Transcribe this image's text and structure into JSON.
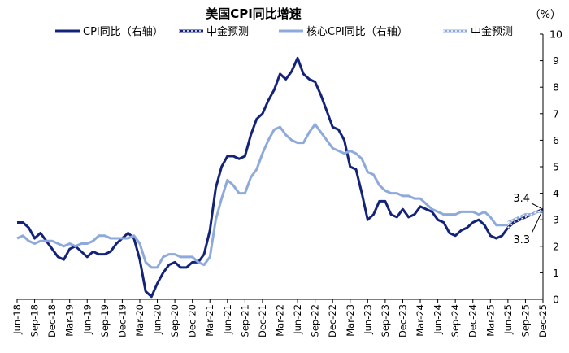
{
  "chart_data": {
    "type": "line",
    "title": "美国CPI同比增速",
    "unit_label": "（%）",
    "ylim": [
      0,
      10
    ],
    "y_ticks": [
      0,
      1,
      2,
      3,
      4,
      5,
      6,
      7,
      8,
      9,
      10
    ],
    "y_axis_side": "right",
    "grid": false,
    "legend_position": "top",
    "x_start": "2018-06",
    "x_tick_labels": [
      "Jun-18",
      "Sep-18",
      "Dec-18",
      "Mar-19",
      "Jun-19",
      "Sep-19",
      "Dec-19",
      "Mar-20",
      "Jun-20",
      "Sep-20",
      "Dec-20",
      "Mar-21",
      "Jun-21",
      "Sep-21",
      "Dec-21",
      "Mar-22",
      "Jun-22",
      "Sep-22",
      "Dec-22",
      "Mar-23",
      "Jun-23",
      "Sep-23",
      "Dec-23",
      "Mar-24",
      "Jun-24",
      "Sep-24",
      "Dec-24",
      "Mar-25",
      "Jun-25",
      "Sep-25",
      "Dec-25"
    ],
    "series": [
      {
        "name": "CPI同比（右轴）",
        "color": "#14237a",
        "style": "solid",
        "start": "2018-06",
        "values": [
          2.9,
          2.9,
          2.7,
          2.3,
          2.5,
          2.2,
          1.9,
          1.6,
          1.5,
          1.9,
          2.0,
          1.8,
          1.6,
          1.8,
          1.7,
          1.7,
          1.8,
          2.1,
          2.3,
          2.5,
          2.3,
          1.5,
          0.3,
          0.1,
          0.6,
          1.0,
          1.3,
          1.4,
          1.2,
          1.2,
          1.4,
          1.4,
          1.7,
          2.6,
          4.2,
          5.0,
          5.4,
          5.4,
          5.3,
          5.4,
          6.2,
          6.8,
          7.0,
          7.5,
          7.9,
          8.5,
          8.3,
          8.6,
          9.1,
          8.5,
          8.3,
          8.2,
          7.7,
          7.1,
          6.5,
          6.4,
          6.0,
          5.0,
          4.9,
          4.0,
          3.0,
          3.2,
          3.7,
          3.7,
          3.2,
          3.1,
          3.4,
          3.1,
          3.2,
          3.5,
          3.4,
          3.3,
          3.0,
          2.9,
          2.5,
          2.4,
          2.6,
          2.7,
          2.9,
          3.0,
          2.8,
          2.4,
          2.3,
          2.4,
          2.7
        ]
      },
      {
        "name": "中金预测",
        "color": "#14237a",
        "style": "dotted",
        "start": "2025-06",
        "values": [
          2.7,
          2.9,
          3.0,
          3.1,
          3.2,
          3.3,
          3.4
        ]
      },
      {
        "name": "核心CPI同比（右轴）",
        "color": "#8ea9db",
        "style": "solid",
        "start": "2018-06",
        "values": [
          2.3,
          2.4,
          2.2,
          2.1,
          2.2,
          2.2,
          2.2,
          2.1,
          2.0,
          2.1,
          2.0,
          2.1,
          2.1,
          2.2,
          2.4,
          2.4,
          2.3,
          2.3,
          2.3,
          2.3,
          2.4,
          2.1,
          1.4,
          1.2,
          1.2,
          1.6,
          1.7,
          1.7,
          1.6,
          1.6,
          1.6,
          1.4,
          1.3,
          1.6,
          3.0,
          3.8,
          4.5,
          4.3,
          4.0,
          4.0,
          4.6,
          4.9,
          5.5,
          6.0,
          6.4,
          6.5,
          6.2,
          6.0,
          5.9,
          5.9,
          6.3,
          6.6,
          6.3,
          6.0,
          5.7,
          5.6,
          5.5,
          5.6,
          5.5,
          5.3,
          4.8,
          4.7,
          4.3,
          4.1,
          4.0,
          4.0,
          3.9,
          3.9,
          3.8,
          3.8,
          3.6,
          3.4,
          3.3,
          3.2,
          3.2,
          3.2,
          3.3,
          3.3,
          3.3,
          3.2,
          3.3,
          3.1,
          2.8,
          2.8,
          2.8
        ]
      },
      {
        "name": "中金预测",
        "color": "#8ea9db",
        "style": "dotted",
        "start": "2025-06",
        "values": [
          2.9,
          3.0,
          3.1,
          3.2,
          3.2,
          3.3,
          3.3
        ]
      }
    ],
    "annotations": [
      {
        "text": "3.4",
        "x": "2025-12",
        "y": 3.4
      },
      {
        "text": "3.3",
        "x": "2025-12",
        "y": 3.3
      }
    ]
  }
}
